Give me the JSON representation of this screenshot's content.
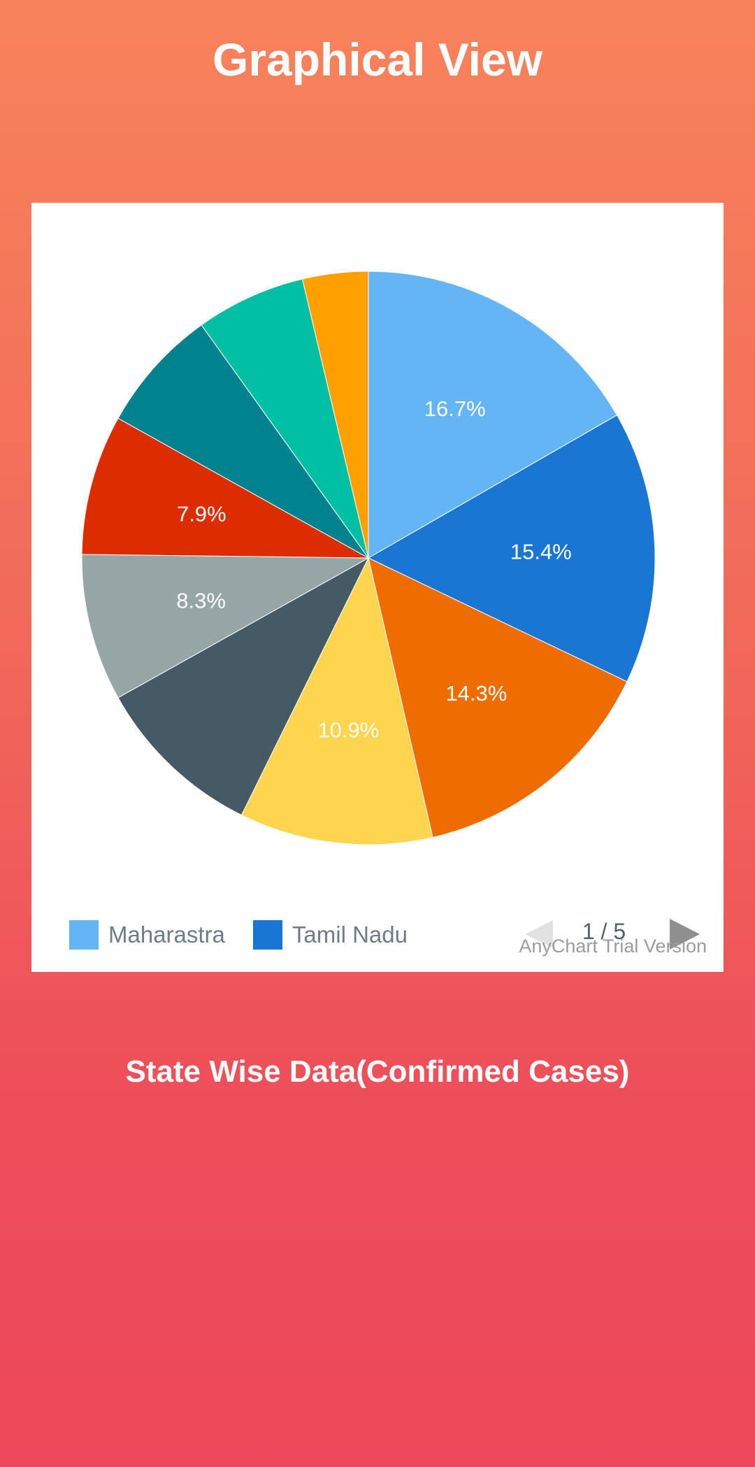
{
  "header": {
    "title": "Graphical View"
  },
  "chart_data": {
    "type": "pie",
    "title": "",
    "categories": [
      "Maharastra",
      "Tamil Nadu",
      "",
      "",
      "",
      "",
      "",
      "",
      "",
      ""
    ],
    "values": [
      16.7,
      15.4,
      14.3,
      10.9,
      9.6,
      8.3,
      7.9,
      7.0,
      6.2,
      3.7
    ],
    "data_labels": [
      "16.7%",
      "15.4%",
      "14.3%",
      "10.9%",
      "",
      "8.3%",
      "7.9%",
      "",
      "",
      ""
    ],
    "colors": [
      "#64b5f6",
      "#1976d2",
      "#ef6c00",
      "#ffd54f",
      "#455a64",
      "#96a6a6",
      "#dd2c00",
      "#00838f",
      "#00bfa5",
      "#ffa000"
    ],
    "legend_position": "bottom-left"
  },
  "legend": {
    "items": [
      {
        "label": "Maharastra",
        "color": "#64b5f6"
      },
      {
        "label": "Tamil Nadu",
        "color": "#1976d2"
      }
    ],
    "pager_text": "1 / 5"
  },
  "watermark": "AnyChart Trial Version",
  "section": {
    "subtitle": "State Wise Data(Confirmed Cases)"
  }
}
